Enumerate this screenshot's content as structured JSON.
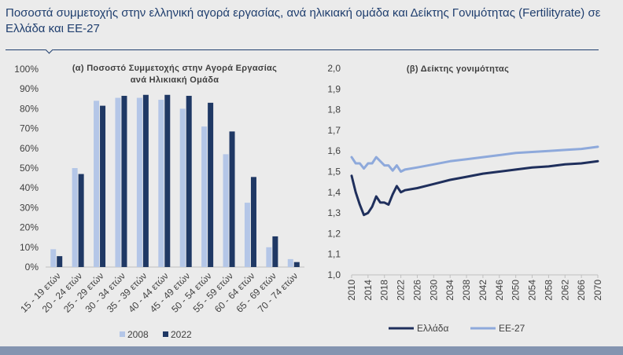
{
  "title": "Ποσοστά συμμετοχής στην ελληνική αγορά εργασίας, ανά ηλικιακή ομάδα και Δείκτης Γονιμότητας (Fertilityrate) σε Ελλάδα και ΕΕ-27",
  "chart_data": [
    {
      "type": "bar",
      "title": "(α) Ποσοστό Συμμετοχής στην Αγορά Εργασίας ανά Ηλικιακή Ομάδα",
      "categories": [
        "15 - 19 ετών",
        "20 - 24 ετών",
        "25 - 29 ετών",
        "30 - 34 ετών",
        "35 - 39 ετών",
        "40 - 44 ετών",
        "45 - 49 ετών",
        "50 - 54 ετών",
        "55 - 59 ετών",
        "60 - 64 ετών",
        "65 - 69 ετών",
        "70 - 74 ετών"
      ],
      "series": [
        {
          "name": "2008",
          "color": "#b4c6e7",
          "values": [
            9,
            50,
            84,
            85.5,
            85.5,
            84.5,
            80,
            71,
            57,
            32.5,
            10,
            4
          ]
        },
        {
          "name": "2022",
          "color": "#1f3864",
          "values": [
            5.5,
            47,
            81.5,
            86.5,
            87,
            87,
            86.5,
            83,
            68.5,
            45.5,
            15.5,
            2.5
          ]
        }
      ],
      "ylim": [
        0,
        100
      ],
      "yticks": [
        "0%",
        "10%",
        "20%",
        "30%",
        "40%",
        "50%",
        "60%",
        "70%",
        "80%",
        "90%",
        "100%"
      ],
      "legend": "bottom"
    },
    {
      "type": "line",
      "title": "(β) Δείκτης γονιμότητας",
      "x_ticks": [
        "2010",
        "2014",
        "2018",
        "2022",
        "2026",
        "2030",
        "2034",
        "2038",
        "2042",
        "2046",
        "2050",
        "2054",
        "2058",
        "2062",
        "2066",
        "2070"
      ],
      "ylim": [
        1.0,
        2.0
      ],
      "yticks": [
        "1,0",
        "1,1",
        "1,2",
        "1,3",
        "1,4",
        "1,5",
        "1,6",
        "1,7",
        "1,8",
        "1,9",
        "2,0"
      ],
      "legend": "bottom",
      "series": [
        {
          "name": "Ελλάδα",
          "color": "#1f2f5c",
          "points": [
            [
              2010,
              1.48
            ],
            [
              2011,
              1.4
            ],
            [
              2012,
              1.34
            ],
            [
              2013,
              1.29
            ],
            [
              2014,
              1.3
            ],
            [
              2015,
              1.33
            ],
            [
              2016,
              1.38
            ],
            [
              2017,
              1.35
            ],
            [
              2018,
              1.35
            ],
            [
              2019,
              1.34
            ],
            [
              2020,
              1.39
            ],
            [
              2021,
              1.43
            ],
            [
              2022,
              1.4
            ],
            [
              2023,
              1.41
            ],
            [
              2026,
              1.42
            ],
            [
              2030,
              1.44
            ],
            [
              2034,
              1.46
            ],
            [
              2038,
              1.475
            ],
            [
              2042,
              1.49
            ],
            [
              2046,
              1.5
            ],
            [
              2050,
              1.51
            ],
            [
              2054,
              1.52
            ],
            [
              2058,
              1.525
            ],
            [
              2062,
              1.535
            ],
            [
              2066,
              1.54
            ],
            [
              2070,
              1.55
            ]
          ]
        },
        {
          "name": "ΕΕ-27",
          "color": "#8ea9db",
          "points": [
            [
              2010,
              1.57
            ],
            [
              2011,
              1.54
            ],
            [
              2012,
              1.54
            ],
            [
              2013,
              1.515
            ],
            [
              2014,
              1.54
            ],
            [
              2015,
              1.54
            ],
            [
              2016,
              1.57
            ],
            [
              2017,
              1.55
            ],
            [
              2018,
              1.53
            ],
            [
              2019,
              1.53
            ],
            [
              2020,
              1.505
            ],
            [
              2021,
              1.53
            ],
            [
              2022,
              1.5
            ],
            [
              2023,
              1.51
            ],
            [
              2026,
              1.52
            ],
            [
              2030,
              1.535
            ],
            [
              2034,
              1.55
            ],
            [
              2038,
              1.56
            ],
            [
              2042,
              1.57
            ],
            [
              2046,
              1.58
            ],
            [
              2050,
              1.59
            ],
            [
              2054,
              1.595
            ],
            [
              2058,
              1.6
            ],
            [
              2062,
              1.605
            ],
            [
              2066,
              1.61
            ],
            [
              2070,
              1.62
            ]
          ]
        }
      ]
    }
  ]
}
